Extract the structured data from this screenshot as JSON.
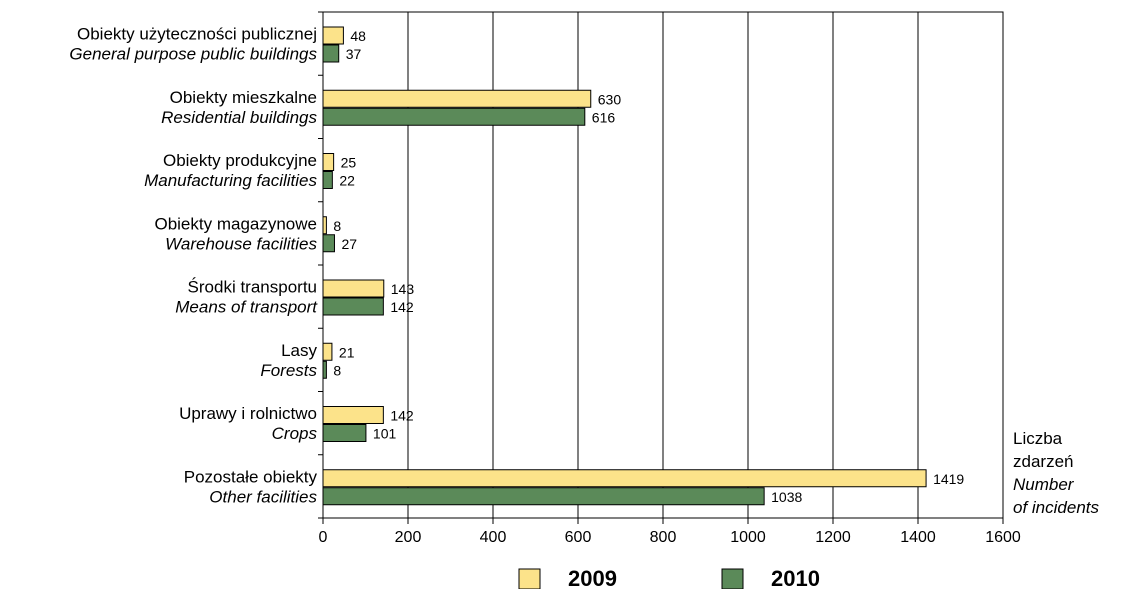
{
  "chart_data": {
    "type": "bar",
    "orientation": "horizontal",
    "categories": [
      {
        "pl": "Obiekty użyteczności publicznej",
        "en": "General purpose public buildings"
      },
      {
        "pl": "Obiekty mieszkalne",
        "en": "Residential buildings"
      },
      {
        "pl": "Obiekty produkcyjne",
        "en": "Manufacturing facilities"
      },
      {
        "pl": "Obiekty magazynowe",
        "en": "Warehouse facilities"
      },
      {
        "pl": "Środki transportu",
        "en": "Means of transport"
      },
      {
        "pl": "Lasy",
        "en": "Forests"
      },
      {
        "pl": "Uprawy i rolnictwo",
        "en": "Crops"
      },
      {
        "pl": "Pozostałe obiekty",
        "en": "Other facilities"
      }
    ],
    "series": [
      {
        "name": "2009",
        "color": "#fce38a",
        "values": [
          48,
          630,
          25,
          8,
          143,
          21,
          142,
          1419
        ]
      },
      {
        "name": "2010",
        "color": "#5b8a59",
        "values": [
          37,
          616,
          22,
          27,
          142,
          8,
          101,
          1038
        ]
      }
    ],
    "data_labels": [
      [
        "48",
        "630",
        "25",
        "8",
        "143",
        "21",
        "142",
        "1419"
      ],
      [
        "37",
        "616",
        "22",
        "27",
        "142",
        "8",
        "101",
        "1038"
      ]
    ],
    "xlim": [
      0,
      1600
    ],
    "xticks": [
      "0",
      "200",
      "400",
      "600",
      "800",
      "1000",
      "1200",
      "1400",
      "1600"
    ],
    "xlabel": {
      "pl": [
        "Liczba",
        "zdarzeń"
      ],
      "en": [
        "Number",
        "of incidents"
      ]
    },
    "grid": "vertical",
    "legend": "bottom"
  }
}
